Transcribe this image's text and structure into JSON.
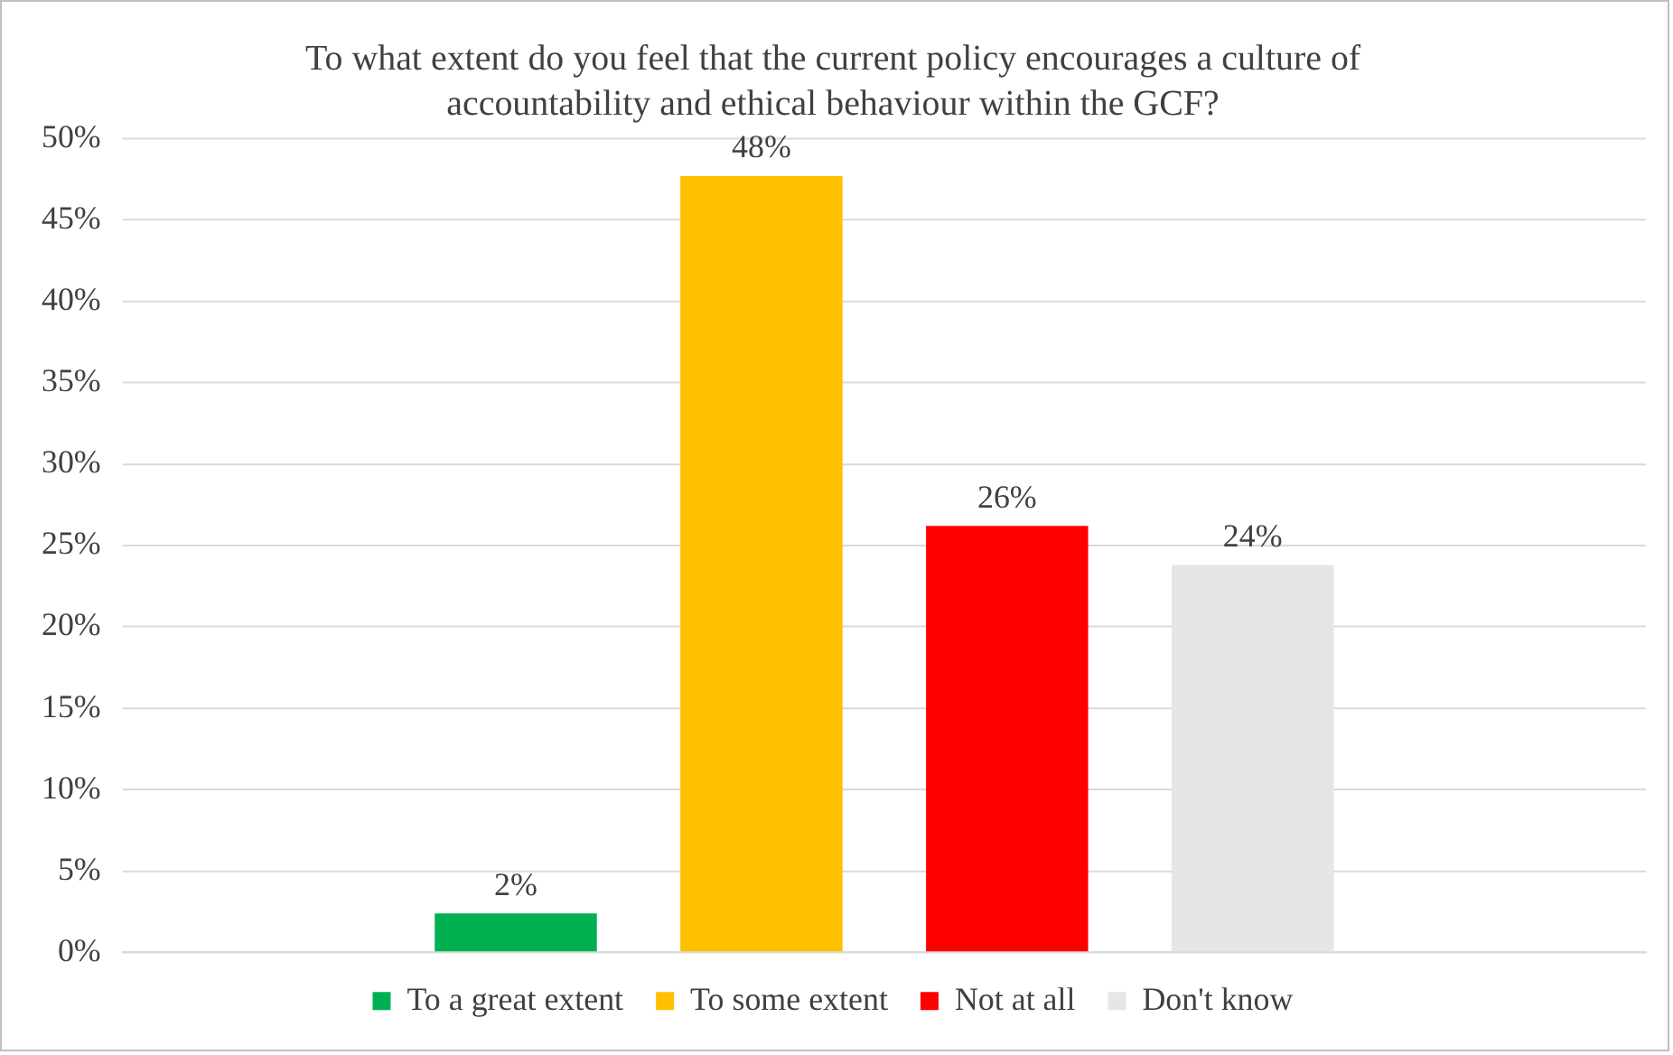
{
  "chart_data": {
    "type": "bar",
    "title": "To what extent do you feel that the current policy encourages a culture of accountability and ethical behaviour within the GCF?",
    "categories": [
      null
    ],
    "series": [
      {
        "name": "To a great extent",
        "color": "#00b050",
        "values": [
          2.4
        ],
        "value_labels": [
          "2%"
        ]
      },
      {
        "name": "To some extent",
        "color": "#ffc000",
        "values": [
          47.7
        ],
        "value_labels": [
          "48%"
        ]
      },
      {
        "name": "Not at all",
        "color": "#ff0000",
        "values": [
          26.2
        ],
        "value_labels": [
          "26%"
        ]
      },
      {
        "name": "Don't know",
        "color": "#e7e6e6",
        "values": [
          23.8
        ],
        "value_labels": [
          "24%"
        ]
      }
    ],
    "ylim": [
      0,
      50
    ],
    "yticks": [
      {
        "value": 0,
        "label": "0%"
      },
      {
        "value": 5,
        "label": "5%"
      },
      {
        "value": 10,
        "label": "10%"
      },
      {
        "value": 15,
        "label": "15%"
      },
      {
        "value": 20,
        "label": "20%"
      },
      {
        "value": 25,
        "label": "25%"
      },
      {
        "value": 30,
        "label": "30%"
      },
      {
        "value": 35,
        "label": "35%"
      },
      {
        "value": 40,
        "label": "40%"
      },
      {
        "value": 45,
        "label": "45%"
      },
      {
        "value": 50,
        "label": "50%"
      }
    ],
    "grid": "y",
    "legend": "bottom"
  }
}
